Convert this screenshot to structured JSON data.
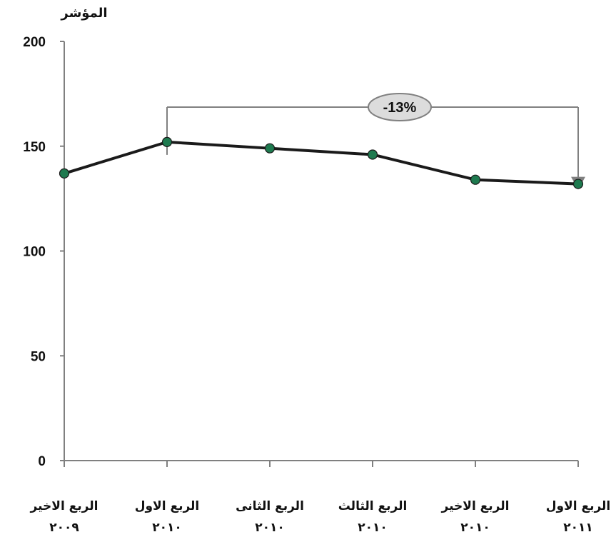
{
  "chart_data": {
    "type": "line",
    "ylabel": "المؤشر",
    "ylim": [
      0,
      200
    ],
    "yticks": [
      0,
      50,
      100,
      150,
      200
    ],
    "categories": [
      {
        "line1": "الربع الاخير",
        "line2": "٢٠٠٩"
      },
      {
        "line1": "الربع الاول",
        "line2": "٢٠١٠"
      },
      {
        "line1": "الربع الثانى",
        "line2": "٢٠١٠"
      },
      {
        "line1": "الربع الثالث",
        "line2": "٢٠١٠"
      },
      {
        "line1": "الربع الاخير",
        "line2": "٢٠١٠"
      },
      {
        "line1": "الربع الاول",
        "line2": "٢٠١١"
      }
    ],
    "values": [
      137,
      152,
      149,
      146,
      134,
      132
    ],
    "annotation": {
      "label": "-13%",
      "from_index": 1,
      "to_index": 5
    },
    "colors": {
      "line": "#1a1a1a",
      "marker": "#1e7a4f",
      "axis": "#808080",
      "callout_fill": "#dcdcdc"
    },
    "grid": false,
    "legend": "none"
  }
}
